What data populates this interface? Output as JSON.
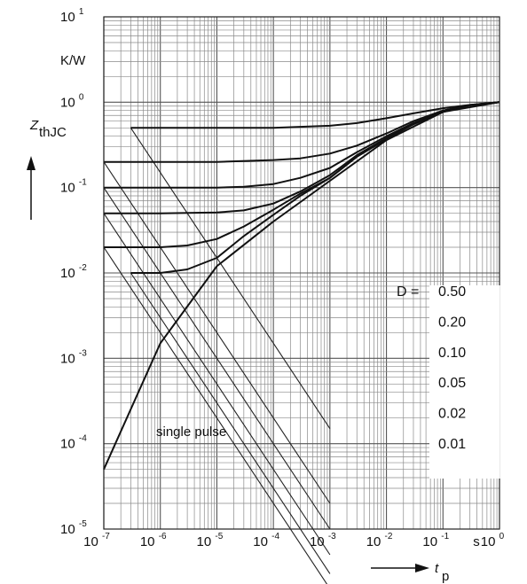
{
  "chart_data": {
    "type": "line",
    "x_scale": "log",
    "y_scale": "log",
    "xlim": [
      1e-07,
      1
    ],
    "ylim": [
      1e-05,
      10
    ],
    "x_ticks": [
      {
        "base": "10",
        "exp": "-7"
      },
      {
        "base": "10",
        "exp": "-6"
      },
      {
        "base": "10",
        "exp": "-5"
      },
      {
        "base": "10",
        "exp": "-4"
      },
      {
        "base": "10",
        "exp": "-3"
      },
      {
        "base": "10",
        "exp": "-2"
      },
      {
        "base": "10",
        "exp": "-1"
      },
      {
        "base": "10",
        "exp": "0"
      }
    ],
    "y_ticks": [
      {
        "base": "10",
        "exp": "1"
      },
      {
        "base": "10",
        "exp": "0"
      },
      {
        "base": "10",
        "exp": "-1"
      },
      {
        "base": "10",
        "exp": "-2"
      },
      {
        "base": "10",
        "exp": "-3"
      },
      {
        "base": "10",
        "exp": "-4"
      },
      {
        "base": "10",
        "exp": "-5"
      }
    ],
    "ylabel_main": "Z",
    "ylabel_sub": "thJC",
    "y_unit": "K/W",
    "xlabel_main": "t",
    "xlabel_sub": "p",
    "x_unit": "s",
    "grid": true,
    "annotations": {
      "single_pulse": "single pulse",
      "d_prefix": "D ="
    },
    "series": [
      {
        "name": "0.50",
        "D": 0.5,
        "x": [
          3e-07,
          1e-06,
          1e-05,
          0.0001,
          0.001,
          0.003,
          0.01,
          0.03,
          0.1,
          0.3,
          1
        ],
        "y": [
          0.5,
          0.5,
          0.5,
          0.5,
          0.53,
          0.57,
          0.65,
          0.74,
          0.85,
          0.93,
          1.0
        ]
      },
      {
        "name": "0.20",
        "D": 0.2,
        "x": [
          1e-07,
          1e-06,
          1e-05,
          0.0001,
          0.0003,
          0.001,
          0.003,
          0.01,
          0.03,
          0.1,
          0.3,
          1
        ],
        "y": [
          0.2,
          0.2,
          0.2,
          0.21,
          0.22,
          0.25,
          0.31,
          0.43,
          0.6,
          0.8,
          0.93,
          1.0
        ]
      },
      {
        "name": "0.10",
        "D": 0.1,
        "x": [
          1e-07,
          1e-06,
          1e-05,
          3e-05,
          0.0001,
          0.0003,
          0.001,
          0.003,
          0.01,
          0.03,
          0.1,
          0.3,
          1
        ],
        "y": [
          0.1,
          0.1,
          0.1,
          0.102,
          0.11,
          0.13,
          0.17,
          0.26,
          0.4,
          0.57,
          0.78,
          0.92,
          1.0
        ]
      },
      {
        "name": "0.05",
        "D": 0.05,
        "x": [
          1e-07,
          1e-06,
          1e-05,
          3e-05,
          0.0001,
          0.0003,
          0.001,
          0.003,
          0.01,
          0.03,
          0.1,
          0.3,
          1
        ],
        "y": [
          0.05,
          0.05,
          0.051,
          0.054,
          0.065,
          0.09,
          0.14,
          0.24,
          0.38,
          0.56,
          0.77,
          0.92,
          1.0
        ]
      },
      {
        "name": "0.02",
        "D": 0.02,
        "x": [
          1e-07,
          1e-06,
          3e-06,
          1e-05,
          3e-05,
          0.0001,
          0.0003,
          0.001,
          0.003,
          0.01,
          0.03,
          0.1,
          0.3,
          1
        ],
        "y": [
          0.02,
          0.02,
          0.021,
          0.025,
          0.035,
          0.055,
          0.085,
          0.13,
          0.23,
          0.37,
          0.56,
          0.77,
          0.92,
          1.0
        ]
      },
      {
        "name": "0.01",
        "D": 0.01,
        "x": [
          3e-07,
          1e-06,
          3e-06,
          1e-05,
          3e-05,
          0.0001,
          0.0003,
          0.001,
          0.003,
          0.01,
          0.03,
          0.1,
          0.3,
          1
        ],
        "y": [
          0.01,
          0.01,
          0.011,
          0.015,
          0.027,
          0.048,
          0.08,
          0.13,
          0.23,
          0.37,
          0.55,
          0.77,
          0.92,
          1.0
        ]
      },
      {
        "name": "single pulse",
        "D": 0,
        "x": [
          1e-07,
          1e-06,
          1e-05,
          0.0001,
          0.001,
          0.01,
          0.1,
          1
        ],
        "y": [
          5e-05,
          0.0015,
          0.012,
          0.04,
          0.12,
          0.36,
          0.77,
          1.0
        ]
      }
    ],
    "d_lines": [
      {
        "D": 0.5,
        "x": [
          3e-07,
          0.001
        ],
        "y": [
          0.5,
          0.00015
        ]
      },
      {
        "D": 0.2,
        "x": [
          1e-07,
          0.001
        ],
        "y": [
          0.2,
          2e-05
        ]
      },
      {
        "D": 0.1,
        "x": [
          1e-07,
          0.001
        ],
        "y": [
          0.1,
          1e-05
        ]
      },
      {
        "D": 0.05,
        "x": [
          1e-07,
          0.001
        ],
        "y": [
          0.05,
          5e-06
        ]
      },
      {
        "D": 0.02,
        "x": [
          1e-07,
          0.001
        ],
        "y": [
          0.02,
          2e-06
        ]
      },
      {
        "D": 0.01,
        "x": [
          3e-07,
          0.001
        ],
        "y": [
          0.01,
          3e-06
        ]
      }
    ],
    "legend_labels": [
      "0.50",
      "0.20",
      "0.10",
      "0.05",
      "0.02",
      "0.01"
    ]
  }
}
